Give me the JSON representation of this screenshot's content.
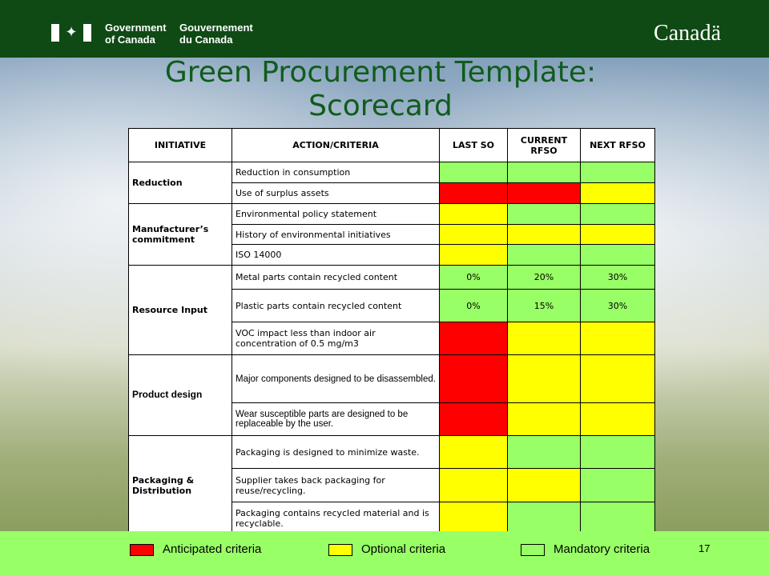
{
  "header": {
    "gov_en_line1": "Government",
    "gov_en_line2": "of Canada",
    "gov_fr_line1": "Gouvernement",
    "gov_fr_line2": "du Canada",
    "wordmark": "Canadä"
  },
  "title_line1": "Green Procurement Template:",
  "title_line2": "Scorecard",
  "columns": [
    "INITIATIVE",
    "ACTION/CRITERIA",
    "LAST SO",
    "CURRENT RFSO",
    "NEXT RFSO"
  ],
  "colors": {
    "green": "#99ff66",
    "yellow": "#ffff00",
    "red": "#ff0000"
  },
  "groups": [
    {
      "initiative": "Reduction",
      "rows": [
        {
          "action": "Reduction in consumption",
          "cells": [
            {
              "color": "green",
              "text": ""
            },
            {
              "color": "green",
              "text": ""
            },
            {
              "color": "green",
              "text": ""
            }
          ]
        },
        {
          "action": "Use of surplus assets",
          "cells": [
            {
              "color": "red",
              "text": ""
            },
            {
              "color": "red",
              "text": ""
            },
            {
              "color": "yellow",
              "text": ""
            }
          ]
        }
      ]
    },
    {
      "initiative": "Manufacturer’s commitment",
      "rows": [
        {
          "action": "Environmental policy statement",
          "cells": [
            {
              "color": "yellow",
              "text": ""
            },
            {
              "color": "green",
              "text": ""
            },
            {
              "color": "green",
              "text": ""
            }
          ]
        },
        {
          "action": "History of environmental initiatives",
          "cells": [
            {
              "color": "yellow",
              "text": ""
            },
            {
              "color": "yellow",
              "text": ""
            },
            {
              "color": "yellow",
              "text": ""
            }
          ]
        },
        {
          "action": "ISO 14000",
          "cells": [
            {
              "color": "yellow",
              "text": ""
            },
            {
              "color": "green",
              "text": ""
            },
            {
              "color": "green",
              "text": ""
            }
          ]
        }
      ]
    },
    {
      "initiative": "Resource Input",
      "rows": [
        {
          "action": "Metal parts contain recycled content",
          "cells": [
            {
              "color": "green",
              "text": "0%"
            },
            {
              "color": "green",
              "text": "20%"
            },
            {
              "color": "green",
              "text": "30%"
            }
          ]
        },
        {
          "action": "Plastic parts contain recycled content",
          "cells": [
            {
              "color": "green",
              "text": "0%"
            },
            {
              "color": "green",
              "text": "15%"
            },
            {
              "color": "green",
              "text": "30%"
            }
          ]
        },
        {
          "action": "VOC impact less than indoor air concentration of 0.5 mg/m3",
          "cells": [
            {
              "color": "red",
              "text": ""
            },
            {
              "color": "yellow",
              "text": ""
            },
            {
              "color": "yellow",
              "text": ""
            }
          ]
        }
      ]
    },
    {
      "initiative": "Product design",
      "rows": [
        {
          "action": "Major components designed to be disassembled.",
          "cells": [
            {
              "color": "red",
              "text": ""
            },
            {
              "color": "yellow",
              "text": ""
            },
            {
              "color": "yellow",
              "text": ""
            }
          ]
        },
        {
          "action": "Wear susceptible parts are designed to be replaceable by the user.",
          "cells": [
            {
              "color": "red",
              "text": ""
            },
            {
              "color": "yellow",
              "text": ""
            },
            {
              "color": "yellow",
              "text": ""
            }
          ]
        }
      ]
    },
    {
      "initiative": "Packaging & Distribution",
      "rows": [
        {
          "action": "Packaging is designed to minimize waste.",
          "cells": [
            {
              "color": "yellow",
              "text": ""
            },
            {
              "color": "green",
              "text": ""
            },
            {
              "color": "green",
              "text": ""
            }
          ]
        },
        {
          "action": "Supplier takes back packaging for reuse/recycling.",
          "cells": [
            {
              "color": "yellow",
              "text": ""
            },
            {
              "color": "yellow",
              "text": ""
            },
            {
              "color": "green",
              "text": ""
            }
          ]
        },
        {
          "action": "Packaging contains recycled material and is recyclable.",
          "cells": [
            {
              "color": "yellow",
              "text": ""
            },
            {
              "color": "green",
              "text": ""
            },
            {
              "color": "green",
              "text": ""
            }
          ]
        }
      ]
    }
  ],
  "legend": {
    "anticipated": "Anticipated criteria",
    "optional": "Optional criteria",
    "mandatory": "Mandatory criteria"
  },
  "page_number": "17"
}
